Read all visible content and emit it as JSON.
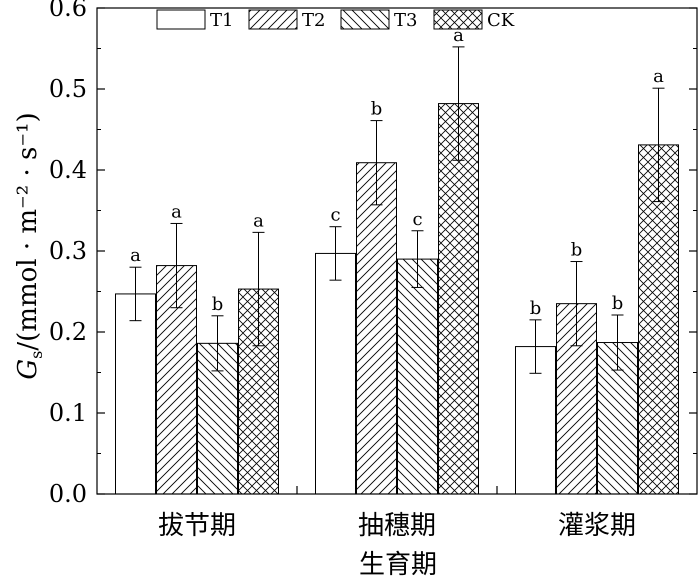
{
  "chart_data": {
    "type": "bar",
    "xlabel": "生育期",
    "ylabel": {
      "symbol": "G",
      "subscript": "s",
      "unit": "/(mmol · m⁻² · s⁻¹)"
    },
    "ylim": [
      0,
      0.6
    ],
    "yticks": [
      "0.0",
      "0.1",
      "0.2",
      "0.3",
      "0.4",
      "0.5",
      "0.6"
    ],
    "categories": [
      "拔节期",
      "抽穗期",
      "灌浆期"
    ],
    "legend_position": "top",
    "series": [
      {
        "name": "T1",
        "pattern": "none",
        "values": [
          0.247,
          0.297,
          0.182
        ],
        "errors": [
          0.033,
          0.033,
          0.033
        ],
        "letters": [
          "a",
          "c",
          "b"
        ]
      },
      {
        "name": "T2",
        "pattern": "diagonal-up",
        "values": [
          0.282,
          0.409,
          0.235
        ],
        "errors": [
          0.052,
          0.052,
          0.052
        ],
        "letters": [
          "a",
          "b",
          "b"
        ]
      },
      {
        "name": "T3",
        "pattern": "diagonal-down",
        "values": [
          0.186,
          0.29,
          0.187
        ],
        "errors": [
          0.034,
          0.035,
          0.034
        ],
        "letters": [
          "b",
          "c",
          "b"
        ]
      },
      {
        "name": "CK",
        "pattern": "crosshatch",
        "values": [
          0.253,
          0.482,
          0.431
        ],
        "errors": [
          0.07,
          0.07,
          0.07
        ],
        "letters": [
          "a",
          "a",
          "a"
        ]
      }
    ]
  }
}
